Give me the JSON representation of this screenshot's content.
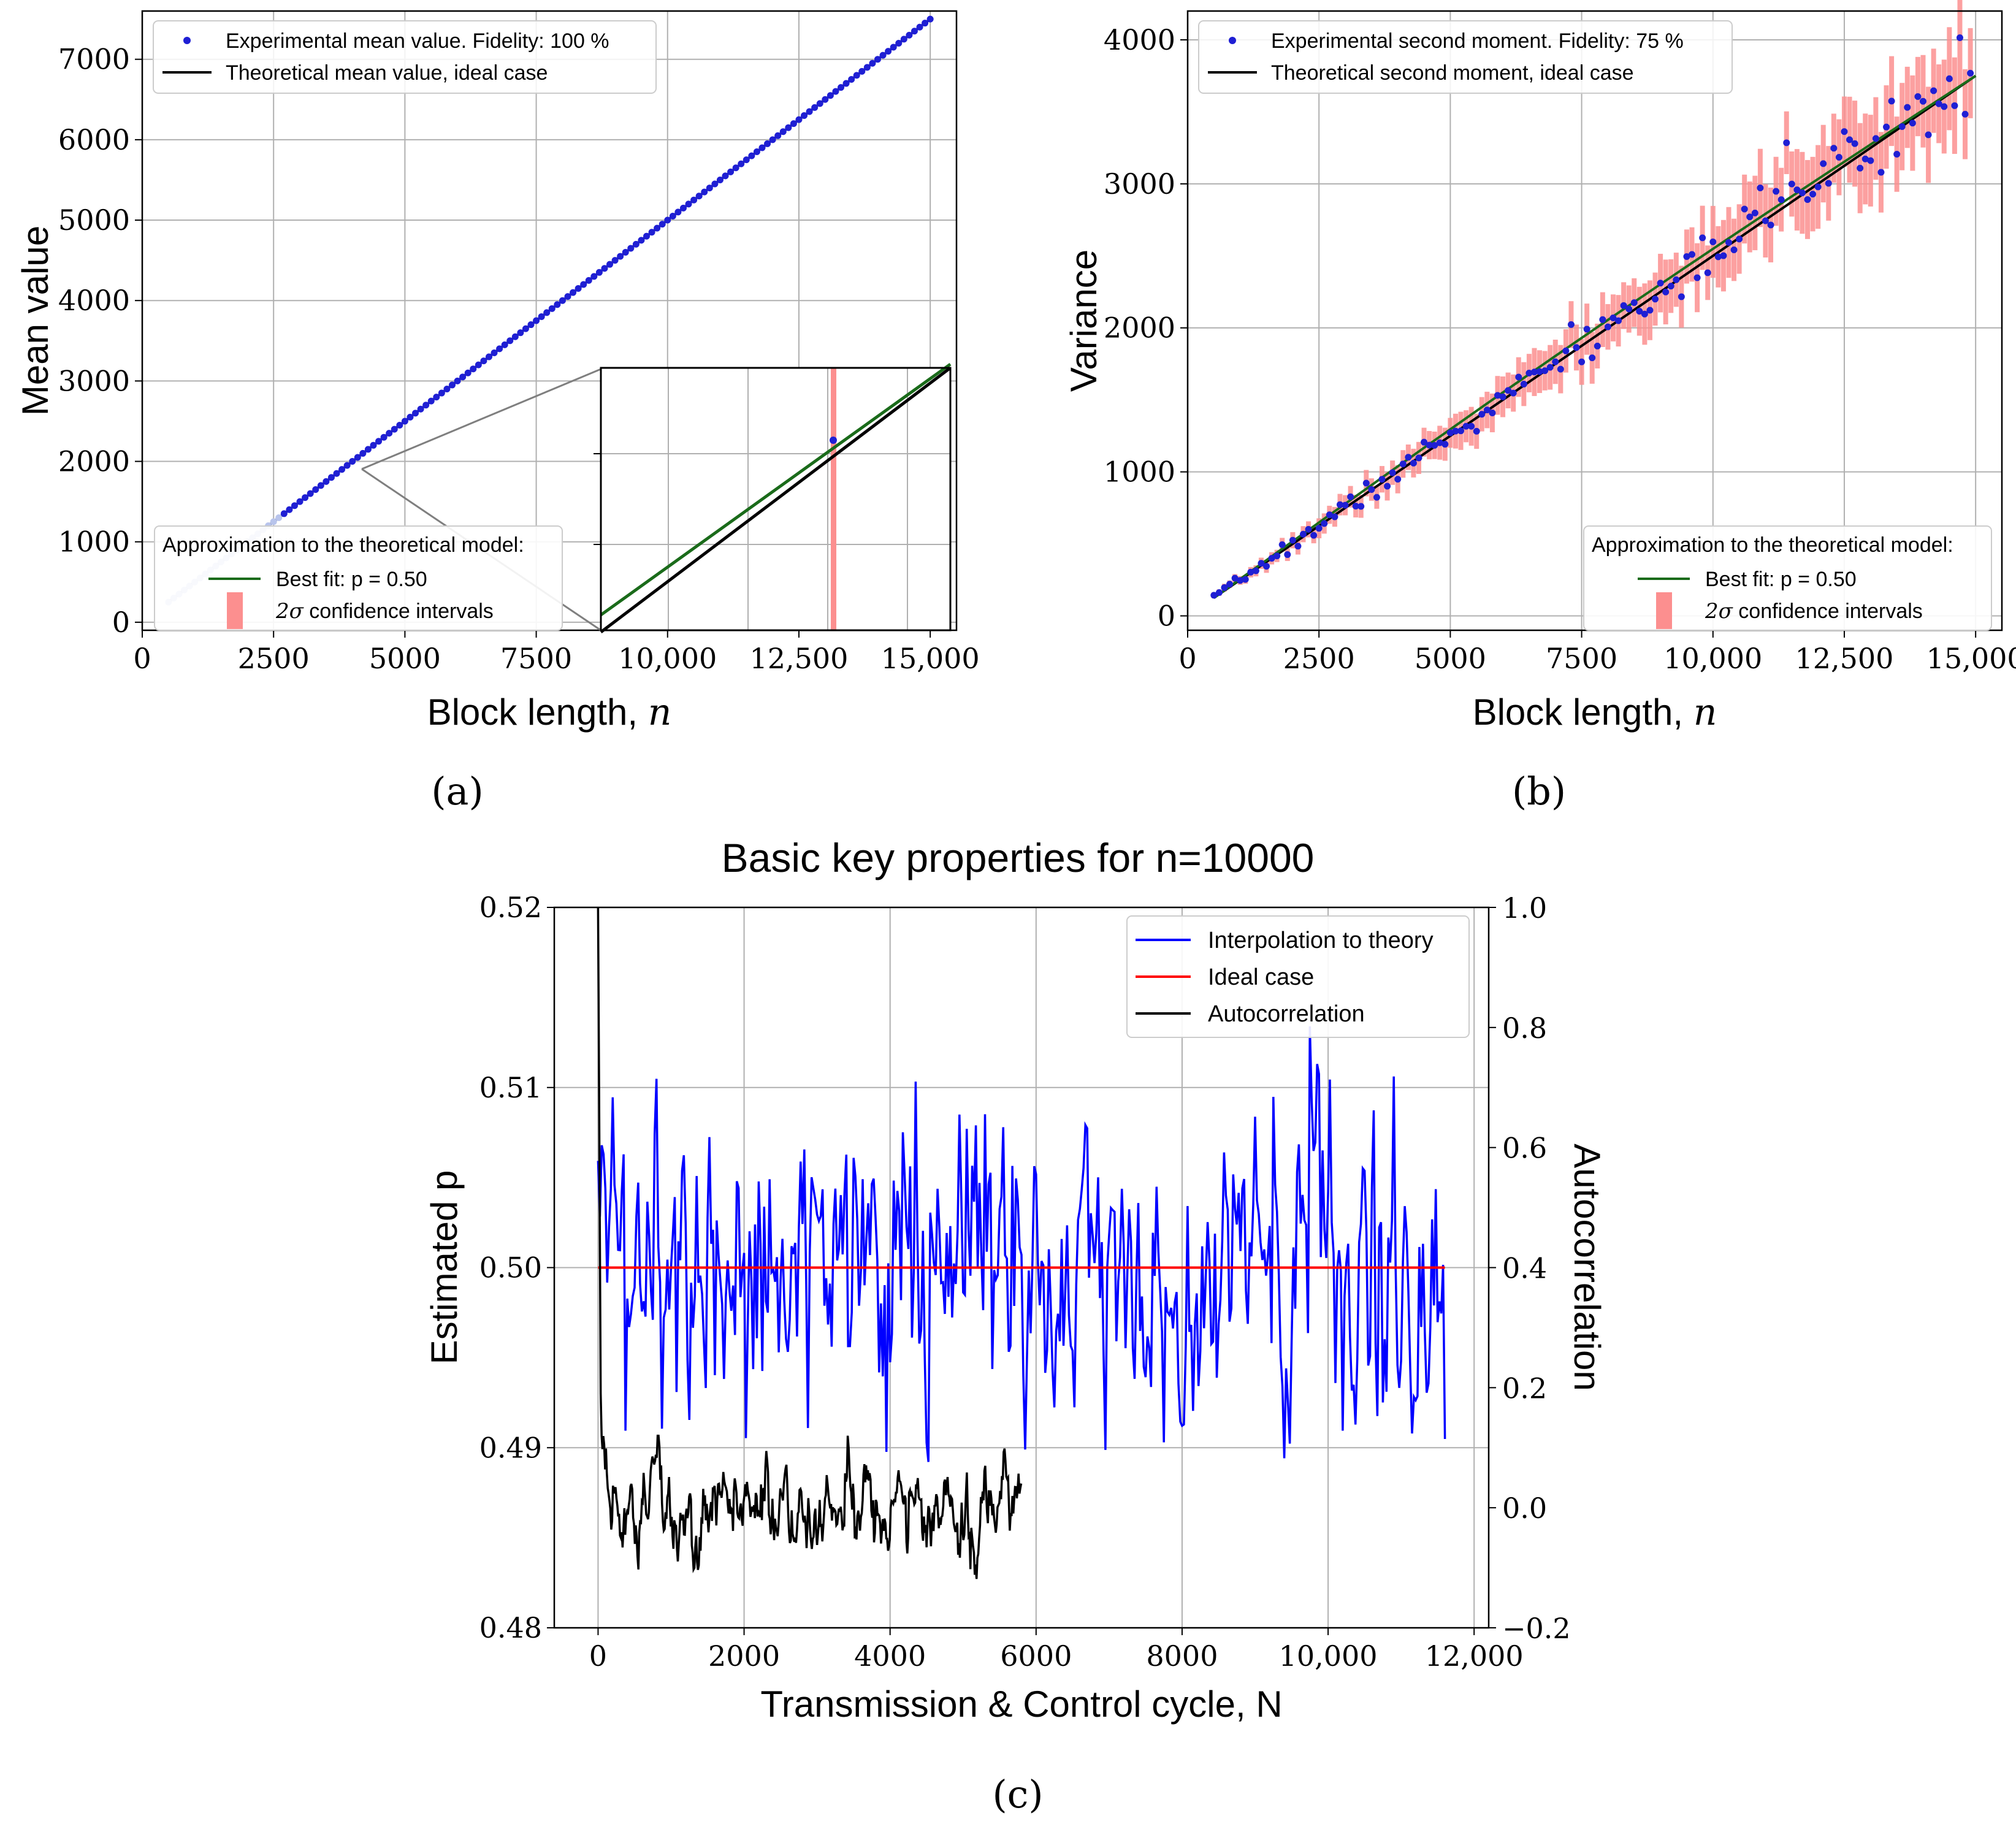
{
  "figure": {
    "captions": [
      "(a)",
      "(b)",
      "(c)"
    ]
  },
  "chart_data": [
    {
      "id": "a",
      "type": "line",
      "xlabel": "Block length, ",
      "xlabel_var": "n",
      "ylabel": "Mean value",
      "xlim": [
        0,
        15500
      ],
      "ylim": [
        -100,
        7600
      ],
      "xticks": [
        0,
        2500,
        5000,
        7500,
        10000,
        12500,
        15000
      ],
      "xtick_labels": [
        "0",
        "2500",
        "5000",
        "7500",
        "10,000",
        "12,500",
        "15,000"
      ],
      "yticks": [
        0,
        1000,
        2000,
        3000,
        4000,
        5000,
        6000,
        7000
      ],
      "ytick_labels": [
        "0",
        "1000",
        "2000",
        "3000",
        "4000",
        "5000",
        "6000",
        "7000"
      ],
      "series": [
        {
          "name": "Experimental mean value. Fidelity: 100 %",
          "kind": "points",
          "x_start": 500,
          "x_end": 15000,
          "x_step": 100,
          "slope": 0.5,
          "intercept": 0
        },
        {
          "name": "Theoretical mean value, ideal case",
          "kind": "line",
          "x": [
            500,
            15000
          ],
          "y": [
            250,
            7500
          ]
        }
      ],
      "legend_top": [
        "Experimental mean value. Fidelity: 100 %",
        "Theoretical mean value, ideal case"
      ],
      "legend_bottom": {
        "title": "Approximation to the theoretical model:",
        "fit": "Best fit: p = 0.50",
        "ci_prefix": "2σ",
        "ci": " confidence intervals"
      },
      "inset": {
        "xlim": [
          3990,
          4010
        ],
        "ylim": [
          1985,
          2015
        ],
        "point": [
          4000,
          2000
        ],
        "note": "zoom of the region around n = 4000"
      },
      "colors": {
        "points": "#1f1fd4",
        "theory": "#000000",
        "fit": "#1a6b1a",
        "ci": "#fc8f8f"
      }
    },
    {
      "id": "b",
      "type": "scatter",
      "xlabel": "Block length, ",
      "xlabel_var": "n",
      "ylabel": "Variance",
      "xlim": [
        0,
        15500
      ],
      "ylim": [
        -100,
        4200
      ],
      "xticks": [
        0,
        2500,
        5000,
        7500,
        10000,
        12500,
        15000
      ],
      "xtick_labels": [
        "0",
        "2500",
        "5000",
        "7500",
        "10,000",
        "12,500",
        "15,000"
      ],
      "yticks": [
        0,
        1000,
        2000,
        3000,
        4000
      ],
      "ytick_labels": [
        "0",
        "1000",
        "2000",
        "3000",
        "4000"
      ],
      "series": [
        {
          "name": "Experimental second moment. Fidelity: 75 %",
          "kind": "points",
          "x_start": 500,
          "x_end": 14900,
          "x_step": 100,
          "model": "0.25*n with noise"
        },
        {
          "name": "Theoretical second moment, ideal case",
          "kind": "line",
          "x": [
            500,
            15000
          ],
          "y": [
            125,
            3750
          ]
        }
      ],
      "legend_top": [
        "Experimental second moment. Fidelity: 75 %",
        "Theoretical second moment, ideal case"
      ],
      "legend_bottom": {
        "title": "Approximation to the theoretical model:",
        "fit": "Best fit: p = 0.50",
        "ci_prefix": "2σ",
        "ci": " confidence intervals"
      },
      "colors": {
        "points": "#1f1fd4",
        "theory": "#000000",
        "fit": "#1a6b1a",
        "ci": "#fc8f8f"
      }
    },
    {
      "id": "c",
      "type": "line",
      "title": "Basic key properties for n=10000",
      "xlabel": "Transmission & Control cycle, N",
      "ylabel": "Estimated p",
      "ylabel2": "Autocorrelation",
      "xlim": [
        -600,
        12200
      ],
      "ylim": [
        0.48,
        0.52
      ],
      "y2lim": [
        -0.2,
        1.0
      ],
      "xticks": [
        0,
        2000,
        4000,
        6000,
        8000,
        10000,
        12000
      ],
      "xtick_labels": [
        "0",
        "2000",
        "4000",
        "6000",
        "8000",
        "10,000",
        "12,000"
      ],
      "yticks": [
        0.48,
        0.49,
        0.5,
        0.51,
        0.52
      ],
      "ytick_labels": [
        "0.48",
        "0.49",
        "0.50",
        "0.51",
        "0.52"
      ],
      "y2ticks": [
        -0.2,
        0.0,
        0.2,
        0.4,
        0.6,
        0.8,
        1.0
      ],
      "y2tick_labels": [
        "−0.2",
        "0.0",
        "0.2",
        "0.4",
        "0.6",
        "0.8",
        "1.0"
      ],
      "series": [
        {
          "name": "Interpolation to theory",
          "color": "#0000ff",
          "x_range": [
            0,
            11600
          ],
          "center": 0.5,
          "spread": 0.011
        },
        {
          "name": "Ideal case",
          "color": "#ff0000",
          "x": [
            0,
            11600
          ],
          "y": [
            0.5,
            0.5
          ]
        },
        {
          "name": "Autocorrelation",
          "color": "#000000",
          "x_range": [
            0,
            5800
          ],
          "start": 1.0,
          "center": 0.0,
          "spread": 0.12
        }
      ],
      "legend": [
        "Interpolation to theory",
        "Ideal case",
        "Autocorrelation"
      ]
    }
  ]
}
